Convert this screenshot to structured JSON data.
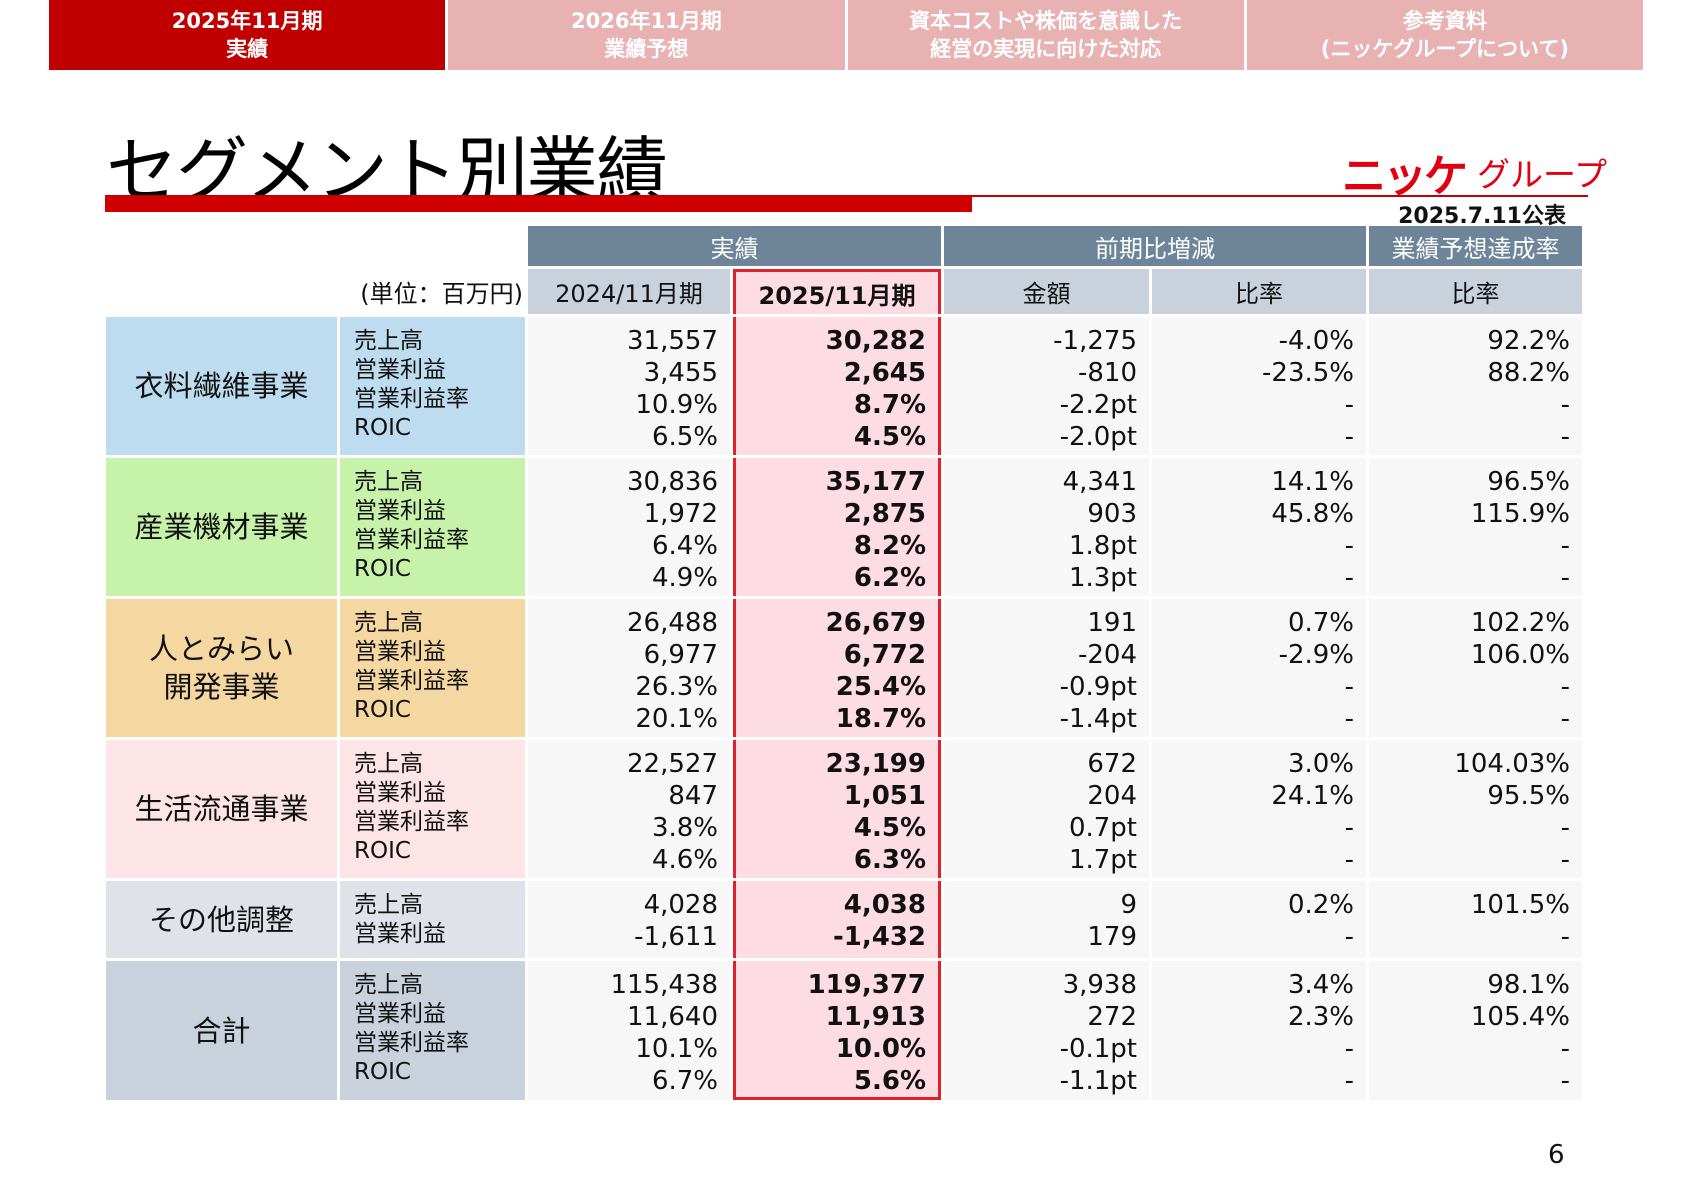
{
  "tabs": [
    {
      "line1": "2025年11月期",
      "line2": "実績",
      "active": true
    },
    {
      "line1": "2026年11月期",
      "line2": "業績予想",
      "active": false
    },
    {
      "line1": "資本コストや株価を意識した",
      "line2": "経営の実現に向けた対応",
      "active": false
    },
    {
      "line1": "参考資料",
      "line2": "(ニッケグループについて)",
      "active": false
    }
  ],
  "title": "セグメント別業績",
  "logo": {
    "mark": "ニッケ",
    "text": "グループ"
  },
  "date": "2025.7.11公表",
  "page_number": "6",
  "colors": {
    "accent": "#c00000",
    "header_dark": "#6e8499",
    "header_light": "#c9d2dc",
    "highlight": "#fddde3",
    "highlight_border": "#e0202a"
  },
  "table": {
    "unit": "(単位：百万円)",
    "group_headers": [
      "実績",
      "前期比増減",
      "業績予想達成率"
    ],
    "sub_headers": [
      "2024/11月期",
      "2025/11月期",
      "金額",
      "比率",
      "比率"
    ],
    "segments": [
      {
        "name": [
          "衣料繊維事業"
        ],
        "color": "#bddcf0",
        "labels": [
          "売上高",
          "営業利益",
          "営業利益率",
          "ROIC"
        ],
        "fy2024": [
          "31,557",
          "3,455",
          "10.9%",
          "6.5%"
        ],
        "fy2025": [
          "30,282",
          "2,645",
          "8.7%",
          "4.5%"
        ],
        "diff": [
          "-1,275",
          "-810",
          "-2.2pt",
          "-2.0pt"
        ],
        "ratio": [
          "-4.0%",
          "-23.5%",
          "-",
          "-"
        ],
        "achievement": [
          "92.2%",
          "88.2%",
          "-",
          "-"
        ]
      },
      {
        "name": [
          "産業機材事業"
        ],
        "color": "#c6f2a9",
        "labels": [
          "売上高",
          "営業利益",
          "営業利益率",
          "ROIC"
        ],
        "fy2024": [
          "30,836",
          "1,972",
          "6.4%",
          "4.9%"
        ],
        "fy2025": [
          "35,177",
          "2,875",
          "8.2%",
          "6.2%"
        ],
        "diff": [
          "4,341",
          "903",
          "1.8pt",
          "1.3pt"
        ],
        "ratio": [
          "14.1%",
          "45.8%",
          "-",
          "-"
        ],
        "achievement": [
          "96.5%",
          "115.9%",
          "-",
          "-"
        ]
      },
      {
        "name": [
          "人とみらい",
          "開発事業"
        ],
        "color": "#f5d7a1",
        "labels": [
          "売上高",
          "営業利益",
          "営業利益率",
          "ROIC"
        ],
        "fy2024": [
          "26,488",
          "6,977",
          "26.3%",
          "20.1%"
        ],
        "fy2025": [
          "26,679",
          "6,772",
          "25.4%",
          "18.7%"
        ],
        "diff": [
          "191",
          "-204",
          "-0.9pt",
          "-1.4pt"
        ],
        "ratio": [
          "0.7%",
          "-2.9%",
          "-",
          "-"
        ],
        "achievement": [
          "102.2%",
          "106.0%",
          "-",
          "-"
        ]
      },
      {
        "name": [
          "生活流通事業"
        ],
        "color": "#fde4e7",
        "labels": [
          "売上高",
          "営業利益",
          "営業利益率",
          "ROIC"
        ],
        "fy2024": [
          "22,527",
          "847",
          "3.8%",
          "4.6%"
        ],
        "fy2025": [
          "23,199",
          "1,051",
          "4.5%",
          "6.3%"
        ],
        "diff": [
          "672",
          "204",
          "0.7pt",
          "1.7pt"
        ],
        "ratio": [
          "3.0%",
          "24.1%",
          "-",
          "-"
        ],
        "achievement": [
          "104.03%",
          "95.5%",
          "-",
          "-"
        ]
      },
      {
        "name": [
          "その他調整"
        ],
        "color": "#dfe3e9",
        "labels": [
          "売上高",
          "営業利益"
        ],
        "fy2024": [
          "4,028",
          "-1,611"
        ],
        "fy2025": [
          "4,038",
          "-1,432"
        ],
        "diff": [
          "9",
          "179"
        ],
        "ratio": [
          "0.2%",
          "-"
        ],
        "achievement": [
          "101.5%",
          "-"
        ]
      },
      {
        "name": [
          "合計"
        ],
        "color": "#c9d2dc",
        "labels": [
          "売上高",
          "営業利益",
          "営業利益率",
          "ROIC"
        ],
        "fy2024": [
          "115,438",
          "11,640",
          "10.1%",
          "6.7%"
        ],
        "fy2025": [
          "119,377",
          "11,913",
          "10.0%",
          "5.6%"
        ],
        "diff": [
          "3,938",
          "272",
          "-0.1pt",
          "-1.1pt"
        ],
        "ratio": [
          "3.4%",
          "2.3%",
          "-",
          "-"
        ],
        "achievement": [
          "98.1%",
          "105.4%",
          "-",
          "-"
        ]
      }
    ]
  }
}
